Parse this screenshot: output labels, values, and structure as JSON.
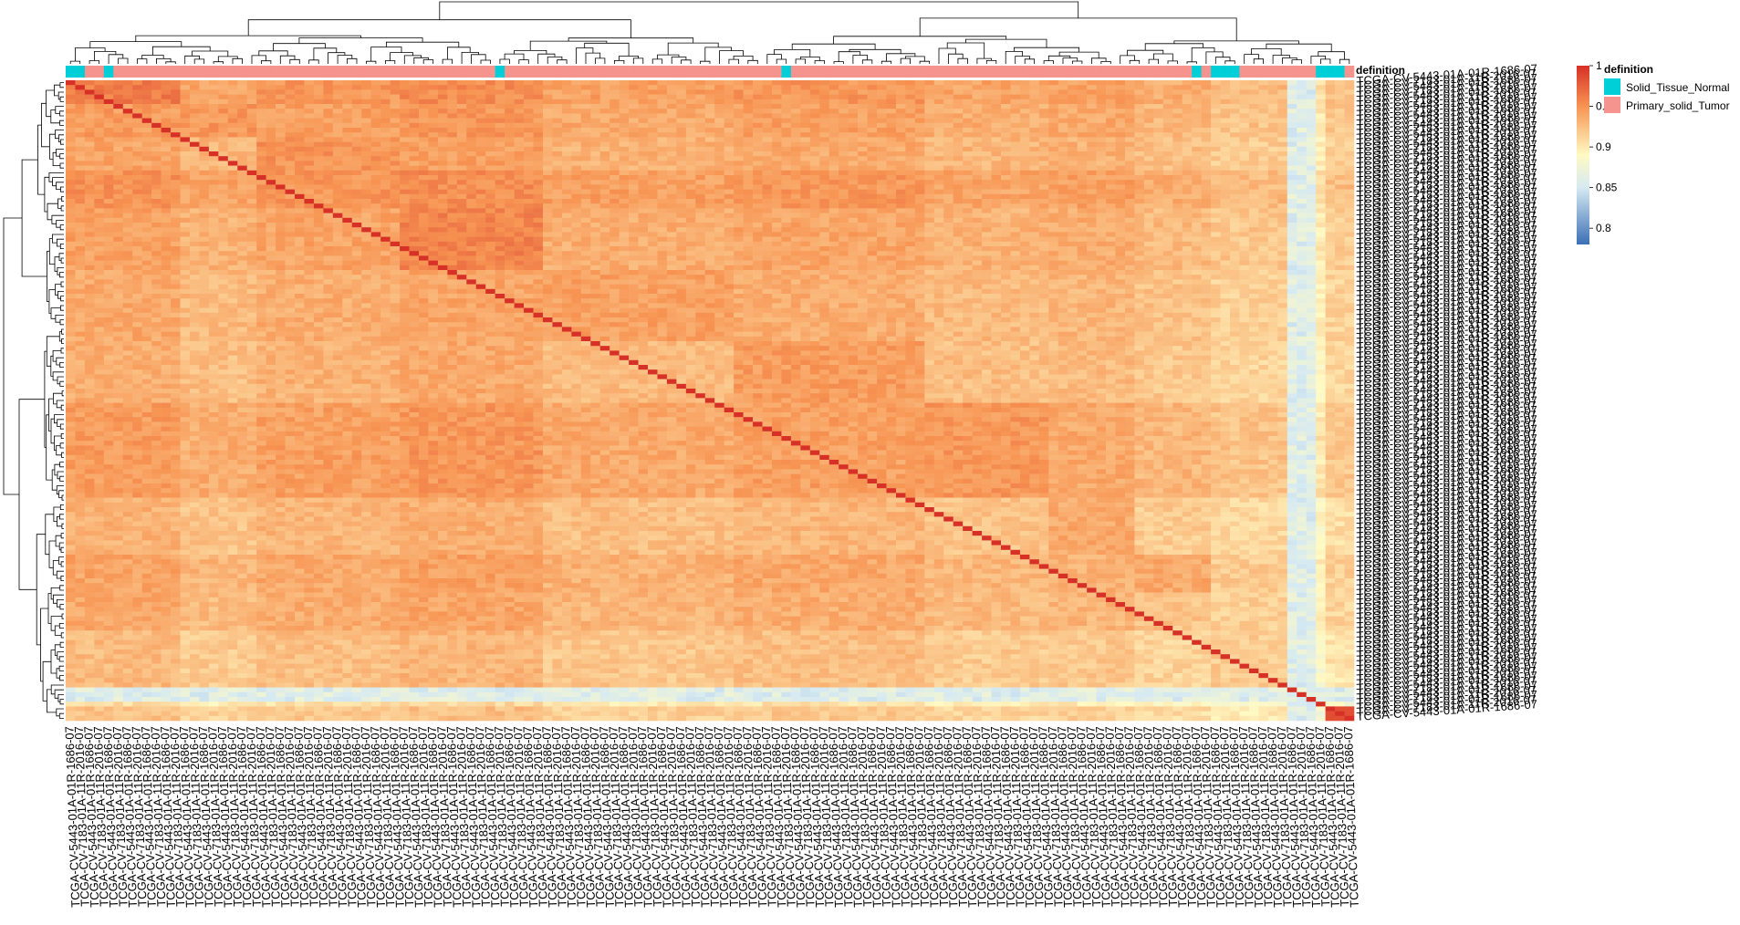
{
  "chart_data": {
    "type": "heatmap",
    "title": "",
    "annotation": {
      "name": "definition",
      "levels": [
        {
          "label": "Solid_Tissue_Normal",
          "color": "#00cfd8"
        },
        {
          "label": "Primary_solid_Tumor",
          "color": "#f5938f"
        }
      ],
      "normal_columns": [
        0,
        1,
        4,
        45,
        75,
        118,
        120,
        121,
        122,
        131,
        132,
        133
      ]
    },
    "color_scale": {
      "title": "",
      "min": 0.78,
      "max": 1.0,
      "ticks": [
        1,
        0.95,
        0.9,
        0.85,
        0.8
      ],
      "tick_labels": [
        "1",
        "0.95",
        "0.9",
        "0.85",
        "0.8"
      ],
      "stops": [
        {
          "value": 0.78,
          "color": "#3b6fb6"
        },
        {
          "value": 0.85,
          "color": "#d6eaf2"
        },
        {
          "value": 0.89,
          "color": "#fffac4"
        },
        {
          "value": 0.95,
          "color": "#f79453"
        },
        {
          "value": 1.0,
          "color": "#d73027"
        }
      ]
    },
    "n_samples": 135,
    "row_labels_sample": [
      "TCGA-CV-5443-01A-01R-1686-07",
      "TCGA-CV-7183-01A-11R-2016-07"
    ],
    "col_labels_sample": [
      "TCGA-CV-5443-01A-01R-1686-07",
      "TCGA-CV-7183-01A-11R-2016-07"
    ],
    "row_clusters": [
      {
        "start": 0,
        "end": 5,
        "mean": 0.955
      },
      {
        "start": 5,
        "end": 12,
        "mean": 0.945
      },
      {
        "start": 12,
        "end": 19,
        "mean": 0.935
      },
      {
        "start": 19,
        "end": 27,
        "mean": 0.955
      },
      {
        "start": 27,
        "end": 40,
        "mean": 0.94
      },
      {
        "start": 40,
        "end": 55,
        "mean": 0.93
      },
      {
        "start": 55,
        "end": 68,
        "mean": 0.925
      },
      {
        "start": 68,
        "end": 88,
        "mean": 0.945
      },
      {
        "start": 88,
        "end": 100,
        "mean": 0.92
      },
      {
        "start": 100,
        "end": 108,
        "mean": 0.935
      },
      {
        "start": 108,
        "end": 116,
        "mean": 0.93
      },
      {
        "start": 116,
        "end": 128,
        "mean": 0.91
      },
      {
        "start": 128,
        "end": 132,
        "mean": 0.87
      },
      {
        "start": 132,
        "end": 135,
        "mean": 0.9
      }
    ],
    "col_clusters": [
      {
        "start": 0,
        "end": 12,
        "mean": 0.945
      },
      {
        "start": 12,
        "end": 20,
        "mean": 0.925
      },
      {
        "start": 20,
        "end": 35,
        "mean": 0.94
      },
      {
        "start": 35,
        "end": 50,
        "mean": 0.95
      },
      {
        "start": 50,
        "end": 70,
        "mean": 0.93
      },
      {
        "start": 70,
        "end": 90,
        "mean": 0.94
      },
      {
        "start": 90,
        "end": 103,
        "mean": 0.925
      },
      {
        "start": 103,
        "end": 112,
        "mean": 0.93
      },
      {
        "start": 112,
        "end": 120,
        "mean": 0.915
      },
      {
        "start": 120,
        "end": 128,
        "mean": 0.9
      },
      {
        "start": 128,
        "end": 132,
        "mean": 0.86
      },
      {
        "start": 132,
        "end": 135,
        "mean": 0.895
      }
    ],
    "diagonal_value": 1.0
  }
}
